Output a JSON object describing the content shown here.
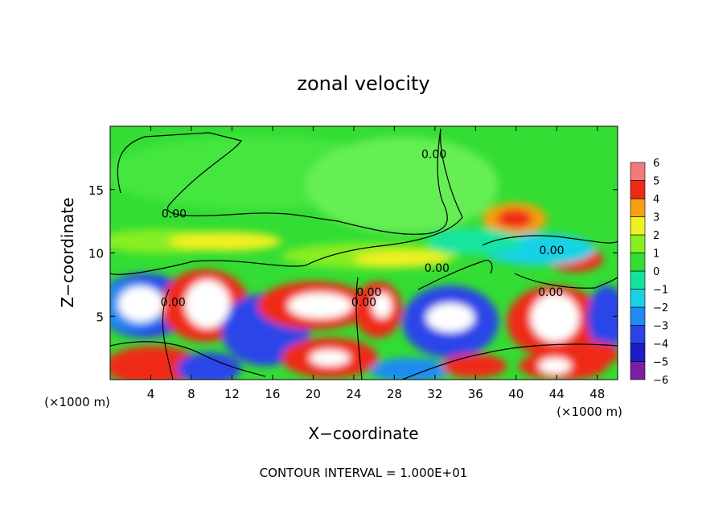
{
  "chart_data": {
    "type": "heatmap",
    "title": "zonal velocity",
    "xlabel": "X−coordinate",
    "ylabel": "Z−coordinate",
    "x_unit_left": "(×1000 m)",
    "x_unit_right": "(×1000 m)",
    "footer": "CONTOUR INTERVAL = 1.000E+01",
    "xlim": [
      0,
      50
    ],
    "ylim": [
      0,
      20
    ],
    "x_ticks": [
      4,
      8,
      12,
      16,
      20,
      24,
      28,
      32,
      36,
      40,
      44,
      48
    ],
    "y_ticks": [
      5,
      10,
      15
    ],
    "colorbar": {
      "levels": [
        -6,
        -5,
        -4,
        -3,
        -2,
        -1,
        0,
        1,
        2,
        3,
        4,
        5,
        6
      ],
      "colors": [
        "#7a1fa0",
        "#1c1cc8",
        "#2a44e8",
        "#1e8cf0",
        "#19d2e6",
        "#12e4a0",
        "#33dd33",
        "#88ee22",
        "#f0f020",
        "#f5a010",
        "#ef2a14",
        "#f27a7a"
      ]
    },
    "contour_labels": [
      {
        "text": "0.00",
        "x": 6.3,
        "y": 12.8
      },
      {
        "text": "0.00",
        "x": 25.5,
        "y": 6.6
      },
      {
        "text": "0.00",
        "x": 6.2,
        "y": 5.8
      },
      {
        "text": "0.00",
        "x": 25.0,
        "y": 5.8
      },
      {
        "text": "0.00",
        "x": 31.9,
        "y": 17.5
      },
      {
        "text": "0.00",
        "x": 32.2,
        "y": 8.5
      },
      {
        "text": "0.00",
        "x": 43.5,
        "y": 9.9
      },
      {
        "text": "0.00",
        "x": 43.4,
        "y": 6.6
      }
    ]
  }
}
